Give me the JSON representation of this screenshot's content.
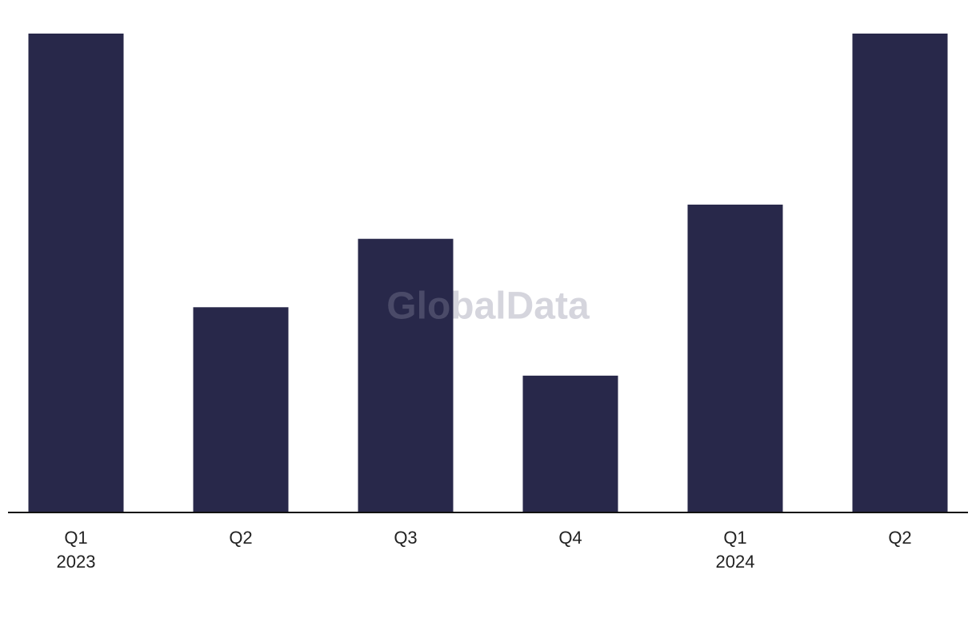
{
  "chart_data": {
    "type": "bar",
    "categories": [
      "Q1",
      "Q2",
      "Q3",
      "Q4",
      "Q1",
      "Q2"
    ],
    "years": [
      "2023",
      null,
      null,
      null,
      "2024",
      null
    ],
    "values": [
      14,
      6,
      8,
      4,
      9,
      14
    ],
    "color": "#28284a",
    "ylim": [
      0,
      14
    ],
    "watermark": "GlobalData"
  }
}
